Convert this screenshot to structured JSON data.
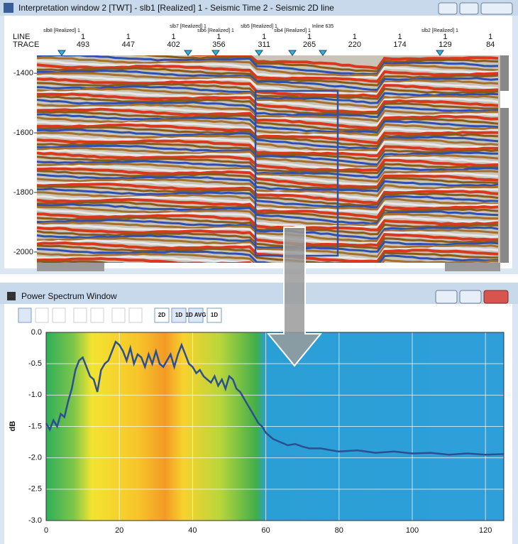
{
  "top_window": {
    "title": "Interpretation window 2 [TWT] - slb1 [Realized] 1 - Seismic Time 2 - Seismic 2D line",
    "line_label": "LINE",
    "trace_label": "TRACE",
    "lines": [
      "1",
      "1",
      "1",
      "1",
      "1",
      "1",
      "1",
      "1",
      "1",
      "1"
    ],
    "traces": [
      493,
      447,
      402,
      356,
      311,
      265,
      220,
      174,
      129,
      84
    ],
    "surveys": [
      "slb8 [Realized] 1",
      "slb7 [Realized] 1",
      "slb6 [Realized] 1",
      "slb5 [Realized] 1",
      "slb4 [Realized] 1",
      "Inline 635",
      "slb2 [Realized] 1"
    ],
    "depth_lim": [
      -1340,
      -2036
    ],
    "depth_ticks": [
      -1400,
      -1600,
      -1800,
      -2000
    ]
  },
  "bottom_window": {
    "title": "Power Spectrum Window",
    "toolbar": [
      "2D",
      "1D",
      "1D AVG",
      "1D"
    ]
  },
  "chart_data": {
    "type": "line",
    "y_label": "dB",
    "xlim": [
      0,
      125
    ],
    "ylim": [
      -3,
      0
    ],
    "xticks": [
      0,
      20,
      40,
      60,
      80,
      100,
      120
    ],
    "yticks": [
      {
        "value": 0,
        "label": "0.0"
      },
      {
        "value": -0.5,
        "label": "-0.5"
      },
      {
        "value": -1,
        "label": "-1.0"
      },
      {
        "value": -1.5,
        "label": "-1.5"
      },
      {
        "value": -2,
        "label": "-2.0"
      },
      {
        "value": -2.5,
        "label": "-2.5"
      },
      {
        "value": -3,
        "label": "-3.0"
      }
    ],
    "grid": true,
    "x": [
      0,
      1,
      2,
      3,
      4,
      5,
      6,
      7,
      8,
      9,
      10,
      11,
      12,
      13,
      14,
      15,
      16,
      17,
      18,
      19,
      20,
      21,
      22,
      23,
      24,
      25,
      26,
      27,
      28,
      29,
      30,
      31,
      32,
      33,
      34,
      35,
      36,
      37,
      38,
      39,
      40,
      41,
      42,
      43,
      44,
      45,
      46,
      47,
      48,
      49,
      50,
      51,
      52,
      53,
      54,
      55,
      56,
      57,
      58,
      59,
      60,
      62,
      64,
      66,
      68,
      70,
      72,
      75,
      78,
      80,
      85,
      90,
      95,
      100,
      105,
      110,
      115,
      120,
      125
    ],
    "series": [
      {
        "color": "#2b4f8f",
        "values": [
          -1.45,
          -1.55,
          -1.4,
          -1.5,
          -1.3,
          -1.35,
          -1.1,
          -0.9,
          -0.6,
          -0.45,
          -0.4,
          -0.55,
          -0.7,
          -0.75,
          -0.95,
          -0.6,
          -0.5,
          -0.45,
          -0.3,
          -0.15,
          -0.2,
          -0.3,
          -0.45,
          -0.25,
          -0.5,
          -0.35,
          -0.4,
          -0.55,
          -0.35,
          -0.5,
          -0.3,
          -0.5,
          -0.55,
          -0.45,
          -0.35,
          -0.55,
          -0.35,
          -0.2,
          -0.35,
          -0.5,
          -0.55,
          -0.65,
          -0.6,
          -0.7,
          -0.75,
          -0.8,
          -0.7,
          -0.85,
          -0.75,
          -0.9,
          -0.7,
          -0.75,
          -0.9,
          -0.95,
          -1.05,
          -1.15,
          -1.25,
          -1.35,
          -1.45,
          -1.5,
          -1.6,
          -1.7,
          -1.75,
          -1.8,
          -1.78,
          -1.82,
          -1.85,
          -1.85,
          -1.88,
          -1.9,
          -1.88,
          -1.92,
          -1.9,
          -1.93,
          -1.92,
          -1.95,
          -1.93,
          -1.95,
          -1.94
        ]
      }
    ]
  }
}
